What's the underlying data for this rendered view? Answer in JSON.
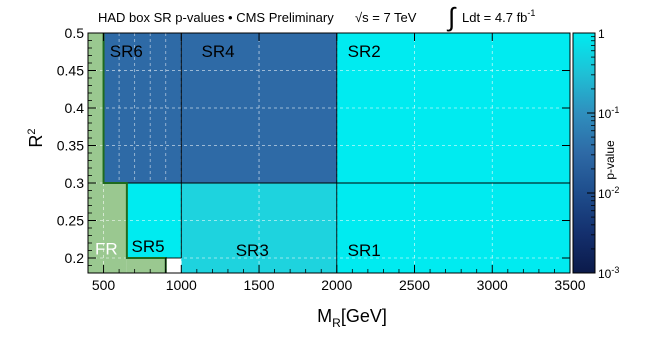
{
  "chart_data": {
    "type": "heatmap",
    "title": {
      "prefix": "HAD box SR p-values • CMS Preliminary",
      "sqrt_s": "√s = 7 TeV",
      "integral_sign": "∫",
      "lumi_text": "Ldt = 4.7 fb",
      "lumi_exp": "-1"
    },
    "xlabel": {
      "main": "M",
      "sub": "R",
      "rest": "[GeV]"
    },
    "ylabel": {
      "main": "R",
      "sup": "2"
    },
    "xlim": [
      400,
      3500
    ],
    "ylim": [
      0.18,
      0.5
    ],
    "xticks": [
      500,
      1000,
      1500,
      2000,
      2500,
      3000,
      3500
    ],
    "yticks": [
      0.2,
      0.25,
      0.3,
      0.35,
      0.4,
      0.45,
      0.5
    ],
    "xtick_labels": [
      "500",
      "1000",
      "1500",
      "2000",
      "2500",
      "3000",
      "3500"
    ],
    "ytick_labels": [
      "0.2",
      "0.25",
      "0.3",
      "0.35",
      "0.4",
      "0.45",
      "0.5"
    ],
    "grid": true,
    "regions": [
      {
        "label": "FR",
        "x": [
          400,
          500
        ],
        "y": [
          0.18,
          0.5
        ],
        "color": "#9ac890"
      },
      {
        "label": "",
        "x": [
          500,
          650
        ],
        "y": [
          0.18,
          0.3
        ],
        "color": "#9ac890"
      },
      {
        "label": "",
        "x": [
          650,
          900
        ],
        "y": [
          0.18,
          0.2
        ],
        "color": "#9ac890"
      },
      {
        "label": "SR6",
        "x": [
          500,
          1000
        ],
        "y": [
          0.3,
          0.5
        ],
        "color": "#2e6aa6"
      },
      {
        "label": "SR4",
        "x": [
          1000,
          2000
        ],
        "y": [
          0.3,
          0.5
        ],
        "color": "#2e6aa6"
      },
      {
        "label": "SR2",
        "x": [
          2000,
          3500
        ],
        "y": [
          0.3,
          0.5
        ],
        "color": "#00ebf0"
      },
      {
        "label": "SR5",
        "x": [
          650,
          1000
        ],
        "y": [
          0.2,
          0.3
        ],
        "color": "#00ebf0"
      },
      {
        "label": "",
        "x": [
          900,
          1000
        ],
        "y": [
          0.18,
          0.2
        ],
        "color": "#ffffff"
      },
      {
        "label": "SR3",
        "x": [
          1000,
          2000
        ],
        "y": [
          0.18,
          0.3
        ],
        "color": "#1ed3de"
      },
      {
        "label": "SR1",
        "x": [
          2000,
          3500
        ],
        "y": [
          0.18,
          0.3
        ],
        "color": "#00ebf0"
      }
    ],
    "colorbar": {
      "label": "p-value",
      "scale": "log",
      "range": [
        0.001,
        1
      ],
      "ticks": [
        {
          "value": 1,
          "base": "1",
          "exp": ""
        },
        {
          "value": 0.1,
          "base": "10",
          "exp": "-1"
        },
        {
          "value": 0.01,
          "base": "10",
          "exp": "-2"
        },
        {
          "value": 0.001,
          "base": "10",
          "exp": "-3"
        }
      ],
      "colors": [
        "#0b1a4a",
        "#14306e",
        "#1e4d8c",
        "#2e6aa6",
        "#2f8fbe",
        "#1ec1d6",
        "#00ebf0"
      ]
    }
  }
}
